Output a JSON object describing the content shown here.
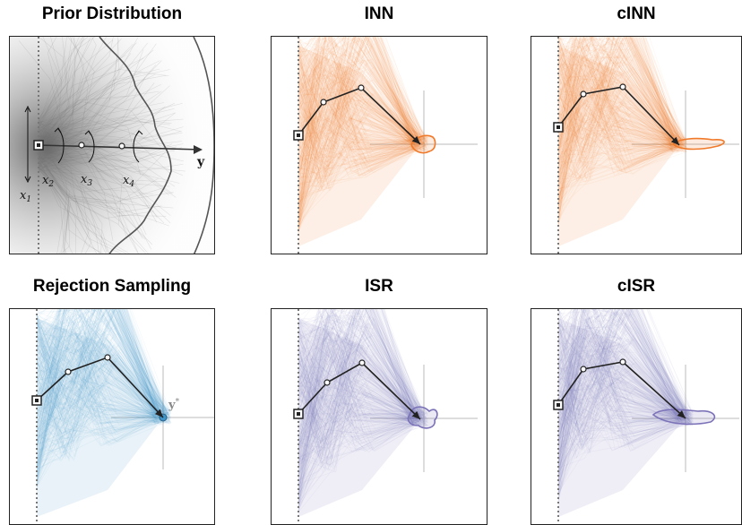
{
  "titles": {
    "prior": "Prior Distribution",
    "inn": "INN",
    "cinn": "cINN",
    "rejection": "Rejection Sampling",
    "isr": "ISR",
    "cisr": "cISR"
  },
  "labels": {
    "x1": "x1",
    "x2": "x2",
    "x3": "x3",
    "x4": "x4",
    "y": "y",
    "y_star": "y*"
  },
  "colors": {
    "prior": "#555555",
    "inn": "#f07a2a",
    "cinn": "#f07a2a",
    "rejection": "#3f94c8",
    "isr": "#7b72b8",
    "cisr": "#7b72b8",
    "arm": "#222222"
  }
}
